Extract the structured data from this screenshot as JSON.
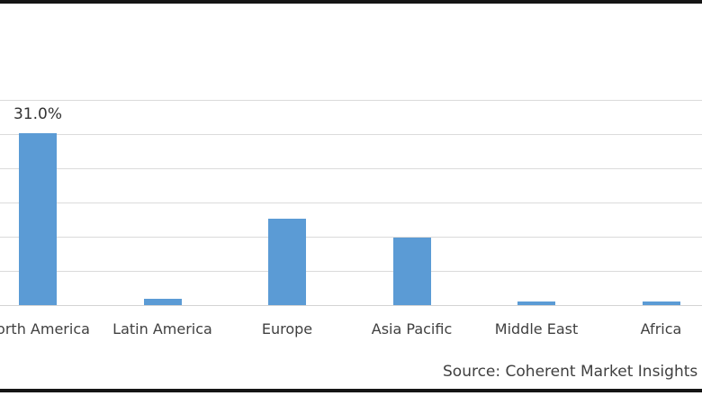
{
  "chart_data": {
    "type": "bar",
    "title": "",
    "xlabel": "",
    "ylabel": "",
    "categories": [
      "North America",
      "Latin America",
      "Europe",
      "Asia Pacific",
      "Middle East",
      "Africa"
    ],
    "values": [
      31.0,
      1.1,
      15.6,
      12.2,
      0.6,
      0.6
    ],
    "data_labels": [
      "31.0%",
      "",
      "",
      "",
      "",
      ""
    ],
    "unit": "%",
    "ylim": [
      0,
      37
    ],
    "grid": true,
    "legend_position": "none",
    "style": {
      "bar_color": "#5b9bd5",
      "gridline_color": "#dbdbdb",
      "axis_line_color": "#d4d4d4",
      "label_color": "#404040",
      "border_color": "#151515",
      "background": "#ffffff"
    }
  },
  "source_note": {
    "text": "Source: Coherent Market Insights"
  }
}
